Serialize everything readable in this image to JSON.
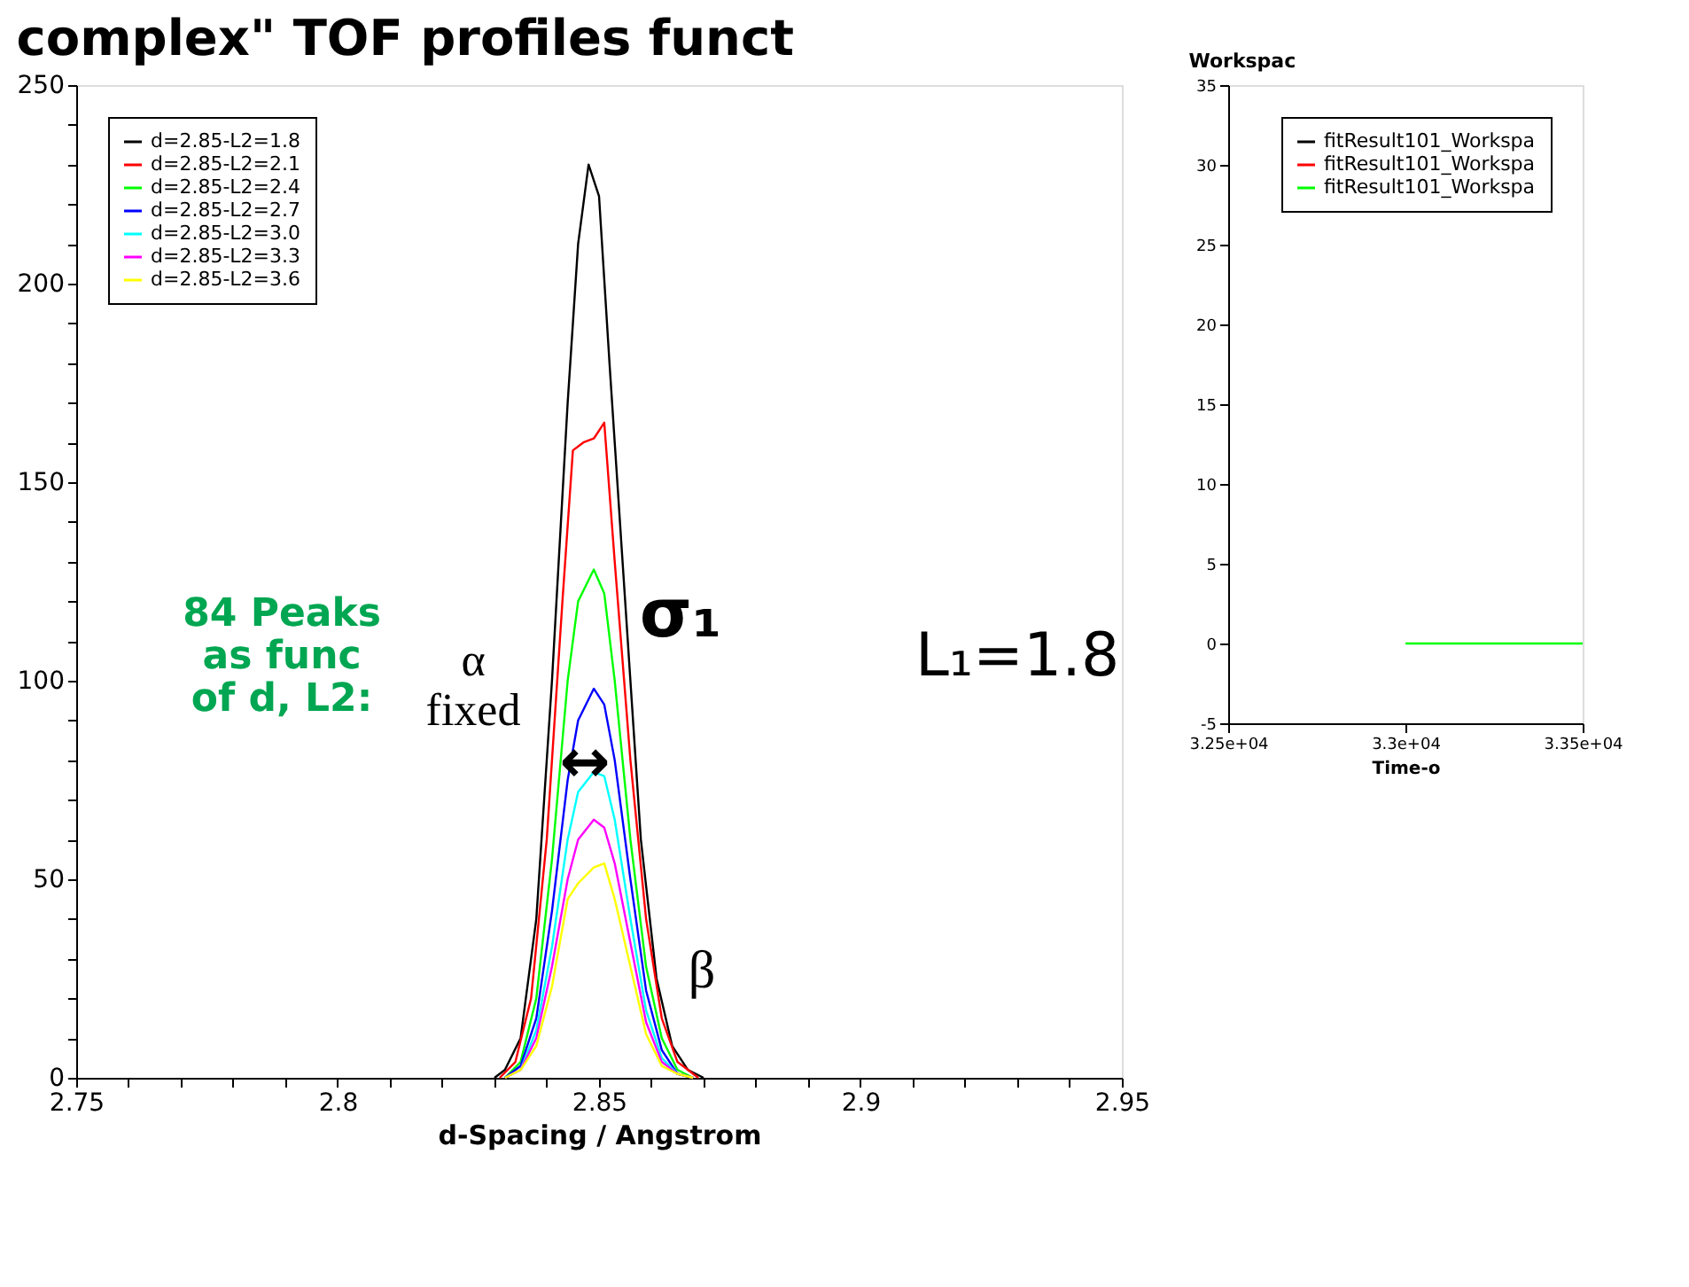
{
  "chart_data": [
    {
      "type": "line",
      "title": "complex\" TOF profiles funct",
      "xlabel": "d-Spacing / Angstrom",
      "xlim": [
        2.75,
        2.95
      ],
      "xticks": [
        2.75,
        {
          "value": 2.76,
          "label": null
        },
        {
          "value": 2.77,
          "label": null
        },
        {
          "value": 2.78,
          "label": null
        },
        {
          "value": 2.79,
          "label": null
        },
        2.8,
        {
          "value": 2.81,
          "label": null
        },
        {
          "value": 2.82,
          "label": null
        },
        {
          "value": 2.83,
          "label": null
        },
        {
          "value": 2.84,
          "label": null
        },
        2.85,
        {
          "value": 2.86,
          "label": null
        },
        {
          "value": 2.87,
          "label": null
        },
        {
          "value": 2.88,
          "label": null
        },
        {
          "value": 2.89,
          "label": null
        },
        2.9,
        {
          "value": 2.91,
          "label": null
        },
        {
          "value": 2.92,
          "label": null
        },
        {
          "value": 2.93,
          "label": null
        },
        {
          "value": 2.94,
          "label": null
        },
        2.95
      ],
      "ylim": [
        0,
        250
      ],
      "yticks": [
        0,
        {
          "value": 10,
          "label": null
        },
        {
          "value": 20,
          "label": null
        },
        {
          "value": 30,
          "label": null
        },
        {
          "value": 40,
          "label": null
        },
        50,
        {
          "value": 60,
          "label": null
        },
        {
          "value": 70,
          "label": null
        },
        {
          "value": 80,
          "label": null
        },
        {
          "value": 90,
          "label": null
        },
        100,
        {
          "value": 110,
          "label": null
        },
        {
          "value": 120,
          "label": null
        },
        {
          "value": 130,
          "label": null
        },
        {
          "value": 140,
          "label": null
        },
        150,
        {
          "value": 160,
          "label": null
        },
        {
          "value": 170,
          "label": null
        },
        {
          "value": 180,
          "label": null
        },
        {
          "value": 190,
          "label": null
        },
        200,
        {
          "value": 210,
          "label": null
        },
        {
          "value": 220,
          "label": null
        },
        {
          "value": 230,
          "label": null
        },
        {
          "value": 240,
          "label": null
        },
        250
      ],
      "grid": false,
      "legend": "top left",
      "marker": "none",
      "line_style": "solid",
      "series": [
        {
          "name": "d=2.85-L2=1.8",
          "color": "#000000",
          "x": [
            2.83,
            2.832,
            2.835,
            2.838,
            2.841,
            2.844,
            2.846,
            2.848,
            2.85,
            2.852,
            2.855,
            2.858,
            2.861,
            2.864,
            2.867,
            2.87
          ],
          "values": [
            0,
            2,
            10,
            40,
            100,
            170,
            210,
            230,
            222,
            180,
            120,
            60,
            25,
            8,
            2,
            0
          ]
        },
        {
          "name": "d=2.85-L2=2.1",
          "color": "#ff0000",
          "x": [
            2.831,
            2.834,
            2.837,
            2.84,
            2.843,
            2.845,
            2.847,
            2.849,
            2.851,
            2.853,
            2.856,
            2.859,
            2.862,
            2.865,
            2.869
          ],
          "values": [
            0,
            4,
            20,
            60,
            120,
            158,
            160,
            161,
            165,
            130,
            80,
            40,
            15,
            4,
            0
          ]
        },
        {
          "name": "d=2.85-L2=2.4",
          "color": "#00ff00",
          "x": [
            2.832,
            2.835,
            2.838,
            2.841,
            2.844,
            2.846,
            2.849,
            2.851,
            2.853,
            2.856,
            2.859,
            2.862,
            2.865,
            2.868
          ],
          "values": [
            0,
            4,
            20,
            55,
            100,
            120,
            128,
            122,
            100,
            60,
            28,
            10,
            2,
            0
          ]
        },
        {
          "name": "d=2.85-L2=2.7",
          "color": "#0000ff",
          "x": [
            2.832,
            2.835,
            2.838,
            2.841,
            2.844,
            2.846,
            2.849,
            2.851,
            2.853,
            2.856,
            2.859,
            2.862,
            2.865,
            2.868
          ],
          "values": [
            0,
            3,
            15,
            42,
            75,
            90,
            98,
            94,
            80,
            50,
            22,
            7,
            1,
            0
          ]
        },
        {
          "name": "d=2.85-L2=3.0",
          "color": "#00ffff",
          "x": [
            2.832,
            2.835,
            2.838,
            2.841,
            2.844,
            2.846,
            2.849,
            2.851,
            2.853,
            2.856,
            2.859,
            2.862,
            2.865,
            2.868
          ],
          "values": [
            0,
            2,
            12,
            33,
            60,
            72,
            77,
            76,
            65,
            40,
            17,
            5,
            1,
            0
          ]
        },
        {
          "name": "d=2.85-L2=3.3",
          "color": "#ff00ff",
          "x": [
            2.832,
            2.835,
            2.838,
            2.841,
            2.844,
            2.846,
            2.849,
            2.851,
            2.853,
            2.856,
            2.859,
            2.862,
            2.865,
            2.868
          ],
          "values": [
            0,
            2,
            10,
            28,
            50,
            60,
            65,
            63,
            54,
            34,
            14,
            4,
            1,
            0
          ]
        },
        {
          "name": "d=2.85-L2=3.6",
          "color": "#ffff00",
          "x": [
            2.832,
            2.835,
            2.838,
            2.841,
            2.844,
            2.846,
            2.849,
            2.851,
            2.853,
            2.856,
            2.859,
            2.862,
            2.865,
            2.868
          ],
          "values": [
            0,
            2,
            8,
            23,
            45,
            49,
            53,
            54,
            45,
            28,
            11,
            3,
            1,
            0
          ]
        }
      ],
      "annotations": [
        "84 Peaks\nas func\nof d, L2:",
        "α\nfixed",
        "σ₁",
        "β",
        "↔",
        "L₁=1.8"
      ]
    },
    {
      "type": "line",
      "title": "Workspac",
      "xlabel": "Time-o",
      "xlim": [
        32500,
        33500
      ],
      "xticks": [
        {
          "value": 32500,
          "label": "3.25e+04"
        },
        {
          "value": 33000,
          "label": "3.3e+04"
        },
        {
          "value": 33500,
          "label": "3.35e+04"
        }
      ],
      "ylim": [
        -5,
        35
      ],
      "yticks": [
        -5,
        0,
        5,
        10,
        15,
        20,
        25,
        30,
        35
      ],
      "grid": false,
      "legend": "top right",
      "marker": "none",
      "line_style": "solid",
      "series": [
        {
          "name": "fitResult101_Workspa",
          "color": "#000000"
        },
        {
          "name": "fitResult101_Workspa",
          "color": "#ff0000"
        },
        {
          "name": "fitResult101_Workspa",
          "color": "#00ff00",
          "x": [
            33000,
            33500
          ],
          "values": [
            0,
            0
          ]
        }
      ]
    }
  ]
}
